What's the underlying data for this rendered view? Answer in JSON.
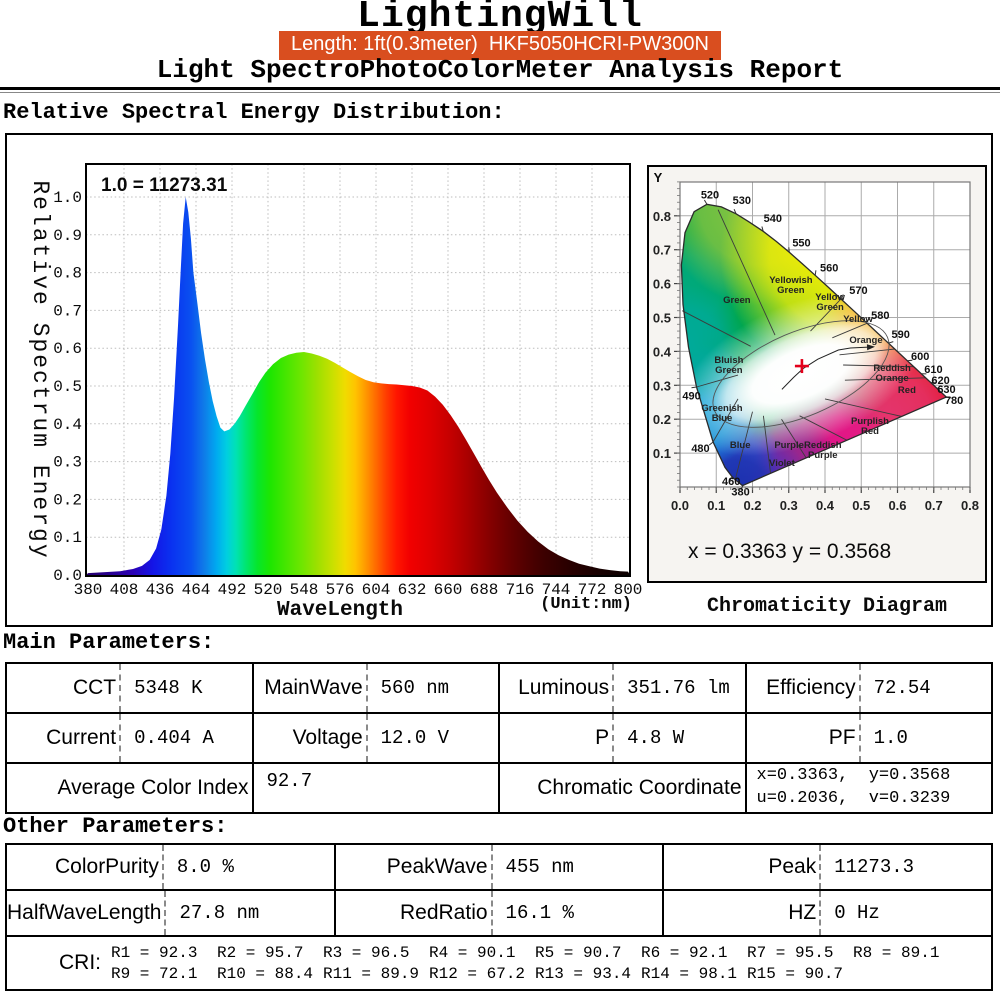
{
  "header": {
    "brand": "LightingWill",
    "badge": "Length: 1ft(0.3meter)  HKF5050HCRI-PW300N",
    "subtitle": "Light SpectroPhotoColorMeter Analysis Report"
  },
  "sections": {
    "spectral": "Relative Spectral Energy Distribution:",
    "main": "Main Parameters:",
    "other": "Other Parameters:"
  },
  "chart_data": [
    {
      "type": "area",
      "title_annotation": "1.0 = 11273.31",
      "xlabel": "WaveLength",
      "x_unit_label": "(Unit:nm)",
      "ylabel": "Relative Spectrum Energy",
      "x_range": [
        380,
        800
      ],
      "y_range": [
        0.0,
        1.0
      ],
      "x_ticks": [
        380,
        408,
        436,
        464,
        492,
        520,
        548,
        576,
        604,
        632,
        660,
        688,
        716,
        744,
        772,
        800
      ],
      "y_tick_step": 0.1,
      "grid": true,
      "peak_normalization": 11273.31,
      "points": [
        [
          380,
          0.005
        ],
        [
          395,
          0.008
        ],
        [
          405,
          0.01
        ],
        [
          415,
          0.016
        ],
        [
          422,
          0.024
        ],
        [
          428,
          0.04
        ],
        [
          433,
          0.07
        ],
        [
          437,
          0.12
        ],
        [
          441,
          0.21
        ],
        [
          444,
          0.32
        ],
        [
          447,
          0.47
        ],
        [
          450,
          0.66
        ],
        [
          452,
          0.8
        ],
        [
          454,
          0.93
        ],
        [
          456,
          1.0
        ],
        [
          458,
          0.96
        ],
        [
          460,
          0.89
        ],
        [
          462,
          0.8
        ],
        [
          465,
          0.72
        ],
        [
          468,
          0.64
        ],
        [
          471,
          0.57
        ],
        [
          474,
          0.51
        ],
        [
          477,
          0.46
        ],
        [
          480,
          0.42
        ],
        [
          483,
          0.39
        ],
        [
          486,
          0.38
        ],
        [
          490,
          0.385
        ],
        [
          494,
          0.4
        ],
        [
          498,
          0.42
        ],
        [
          503,
          0.45
        ],
        [
          508,
          0.48
        ],
        [
          513,
          0.51
        ],
        [
          518,
          0.535
        ],
        [
          524,
          0.558
        ],
        [
          530,
          0.574
        ],
        [
          536,
          0.583
        ],
        [
          542,
          0.588
        ],
        [
          548,
          0.59
        ],
        [
          554,
          0.586
        ],
        [
          560,
          0.58
        ],
        [
          566,
          0.572
        ],
        [
          572,
          0.561
        ],
        [
          578,
          0.549
        ],
        [
          584,
          0.537
        ],
        [
          590,
          0.526
        ],
        [
          596,
          0.516
        ],
        [
          602,
          0.51
        ],
        [
          608,
          0.507
        ],
        [
          614,
          0.505
        ],
        [
          620,
          0.504
        ],
        [
          626,
          0.502
        ],
        [
          632,
          0.5
        ],
        [
          638,
          0.496
        ],
        [
          644,
          0.488
        ],
        [
          650,
          0.472
        ],
        [
          656,
          0.45
        ],
        [
          662,
          0.423
        ],
        [
          668,
          0.392
        ],
        [
          674,
          0.358
        ],
        [
          680,
          0.322
        ],
        [
          686,
          0.286
        ],
        [
          692,
          0.251
        ],
        [
          698,
          0.218
        ],
        [
          706,
          0.179
        ],
        [
          714,
          0.144
        ],
        [
          722,
          0.114
        ],
        [
          730,
          0.089
        ],
        [
          738,
          0.068
        ],
        [
          746,
          0.052
        ],
        [
          754,
          0.04
        ],
        [
          762,
          0.03
        ],
        [
          770,
          0.023
        ],
        [
          778,
          0.017
        ],
        [
          786,
          0.013
        ],
        [
          794,
          0.01
        ],
        [
          800,
          0.009
        ]
      ],
      "wavelength_colors": [
        [
          380,
          "#26006e"
        ],
        [
          415,
          "#2b00b4"
        ],
        [
          430,
          "#1414e6"
        ],
        [
          445,
          "#0a32f0"
        ],
        [
          460,
          "#0a50f0"
        ],
        [
          470,
          "#0f7ae8"
        ],
        [
          480,
          "#00aaf0"
        ],
        [
          488,
          "#00cfe0"
        ],
        [
          495,
          "#00e2b4"
        ],
        [
          503,
          "#00e66e"
        ],
        [
          512,
          "#06e62a"
        ],
        [
          522,
          "#1ee600"
        ],
        [
          534,
          "#46e600"
        ],
        [
          546,
          "#6ee600"
        ],
        [
          558,
          "#9ce000"
        ],
        [
          570,
          "#c8e000"
        ],
        [
          580,
          "#f0dc00"
        ],
        [
          588,
          "#ffc300"
        ],
        [
          596,
          "#ff9800"
        ],
        [
          604,
          "#ff6a00"
        ],
        [
          612,
          "#ff3c00"
        ],
        [
          620,
          "#ff1600"
        ],
        [
          630,
          "#f20000"
        ],
        [
          645,
          "#e00000"
        ],
        [
          660,
          "#c80000"
        ],
        [
          675,
          "#aa0000"
        ],
        [
          690,
          "#8a0000"
        ],
        [
          705,
          "#6c0000"
        ],
        [
          720,
          "#520000"
        ],
        [
          735,
          "#3c0000"
        ],
        [
          755,
          "#280000"
        ],
        [
          775,
          "#190000"
        ],
        [
          800,
          "#0c0000"
        ]
      ]
    },
    {
      "type": "scatter",
      "name": "CIE 1931 Chromaticity Diagram",
      "caption": "Chromaticity Diagram",
      "y_axis_label": "Y",
      "x_ticks": [
        0.0,
        0.1,
        0.2,
        0.3,
        0.4,
        0.5,
        0.6,
        0.7,
        0.8
      ],
      "y_ticks": [
        0.1,
        0.2,
        0.3,
        0.4,
        0.5,
        0.6,
        0.7,
        0.8
      ],
      "point": {
        "x": 0.3363,
        "y": 0.3568
      },
      "coordinate_text": "x = 0.3363   y = 0.3568",
      "locus": [
        [
          380,
          0.1741,
          0.005
        ],
        [
          420,
          0.1714,
          0.0051
        ],
        [
          440,
          0.1644,
          0.0109
        ],
        [
          455,
          0.151,
          0.0227
        ],
        [
          460,
          0.144,
          0.0297
        ],
        [
          470,
          0.1241,
          0.0578
        ],
        [
          480,
          0.0913,
          0.1327
        ],
        [
          490,
          0.0454,
          0.295
        ],
        [
          495,
          0.0235,
          0.4127
        ],
        [
          500,
          0.0082,
          0.5384
        ],
        [
          505,
          0.0039,
          0.6548
        ],
        [
          510,
          0.0139,
          0.7502
        ],
        [
          515,
          0.0389,
          0.812
        ],
        [
          520,
          0.0743,
          0.8338
        ],
        [
          525,
          0.1142,
          0.8262
        ],
        [
          530,
          0.1547,
          0.8059
        ],
        [
          535,
          0.1896,
          0.7826
        ],
        [
          540,
          0.2296,
          0.7543
        ],
        [
          545,
          0.2658,
          0.7243
        ],
        [
          550,
          0.3016,
          0.6923
        ],
        [
          555,
          0.3373,
          0.6588
        ],
        [
          560,
          0.3731,
          0.6245
        ],
        [
          565,
          0.4087,
          0.5896
        ],
        [
          570,
          0.4441,
          0.5547
        ],
        [
          575,
          0.4788,
          0.5202
        ],
        [
          580,
          0.5125,
          0.4866
        ],
        [
          585,
          0.5448,
          0.4544
        ],
        [
          590,
          0.5752,
          0.4242
        ],
        [
          595,
          0.6029,
          0.3965
        ],
        [
          600,
          0.627,
          0.3725
        ],
        [
          605,
          0.6482,
          0.3514
        ],
        [
          610,
          0.6658,
          0.334
        ],
        [
          615,
          0.6801,
          0.3197
        ],
        [
          620,
          0.6915,
          0.3083
        ],
        [
          625,
          0.7006,
          0.2993
        ],
        [
          630,
          0.7079,
          0.292
        ],
        [
          640,
          0.719,
          0.2809
        ],
        [
          650,
          0.726,
          0.274
        ],
        [
          780,
          0.7347,
          0.2653
        ]
      ],
      "labeled_wavelengths": [
        520,
        530,
        540,
        550,
        560,
        570,
        580,
        590,
        600,
        610,
        620,
        630,
        780,
        490,
        480,
        460,
        380
      ],
      "region_labels": [
        {
          "lines": [
            "Green"
          ],
          "x": 0.157,
          "y": 0.543
        },
        {
          "lines": [
            "Yellowish",
            "Green"
          ],
          "x": 0.306,
          "y": 0.602
        },
        {
          "lines": [
            "Yellow",
            "Green"
          ],
          "x": 0.414,
          "y": 0.552
        },
        {
          "lines": [
            "Yellow"
          ],
          "x": 0.491,
          "y": 0.487
        },
        {
          "lines": [
            "Orange"
          ],
          "x": 0.513,
          "y": 0.425
        },
        {
          "lines": [
            "Reddish",
            "Orange"
          ],
          "x": 0.585,
          "y": 0.342
        },
        {
          "lines": [
            "Red"
          ],
          "x": 0.626,
          "y": 0.277
        },
        {
          "lines": [
            "Purplish",
            "Red"
          ],
          "x": 0.524,
          "y": 0.186
        },
        {
          "lines": [
            "Reddish",
            "Purple"
          ],
          "x": 0.394,
          "y": 0.115
        },
        {
          "lines": [
            "Purple"
          ],
          "x": 0.301,
          "y": 0.115
        },
        {
          "lines": [
            "Violet"
          ],
          "x": 0.281,
          "y": 0.062
        },
        {
          "lines": [
            "Blue"
          ],
          "x": 0.166,
          "y": 0.115
        },
        {
          "lines": [
            "Greenish",
            "Blue"
          ],
          "x": 0.116,
          "y": 0.224
        },
        {
          "lines": [
            "Bluish",
            "Green"
          ],
          "x": 0.135,
          "y": 0.366
        }
      ],
      "boundaries": [
        [
          0.262,
          0.448,
          0.105,
          0.818
        ],
        [
          0.195,
          0.415,
          0.006,
          0.52
        ],
        [
          0.16,
          0.33,
          0.0454,
          0.295
        ],
        [
          0.16,
          0.26,
          0.0913,
          0.133
        ],
        [
          0.2,
          0.222,
          0.152,
          0.02
        ],
        [
          0.23,
          0.21,
          0.25,
          0.04
        ],
        [
          0.28,
          0.2,
          0.348,
          0.086
        ],
        [
          0.33,
          0.21,
          0.46,
          0.138
        ],
        [
          0.4,
          0.26,
          0.612,
          0.208
        ],
        [
          0.455,
          0.315,
          0.678,
          0.322
        ],
        [
          0.45,
          0.36,
          0.644,
          0.355
        ],
        [
          0.44,
          0.39,
          0.593,
          0.407
        ],
        [
          0.42,
          0.44,
          0.516,
          0.483
        ],
        [
          0.36,
          0.46,
          0.444,
          0.555
        ]
      ],
      "planckian_locus": [
        [
          0.527,
          0.413
        ],
        [
          0.47,
          0.41
        ],
        [
          0.437,
          0.404
        ],
        [
          0.38,
          0.377
        ],
        [
          0.34,
          0.35
        ],
        [
          0.313,
          0.323
        ],
        [
          0.281,
          0.288
        ]
      ]
    }
  ],
  "tables": {
    "main": {
      "rows": [
        [
          {
            "label": "CCT",
            "value": "5348 K"
          },
          {
            "label": "MainWave",
            "value": "560 nm"
          },
          {
            "label": "Luminous",
            "value": "351.76 lm"
          },
          {
            "label": "Efficiency",
            "value": "72.54"
          }
        ],
        [
          {
            "label": "Current",
            "value": "0.404 A"
          },
          {
            "label": "Voltage",
            "value": "12.0 V"
          },
          {
            "label": "P",
            "value": "4.8 W"
          },
          {
            "label": "PF",
            "value": "1.0"
          }
        ]
      ],
      "row3": {
        "label1": "Average Color Index",
        "value1": "92.7",
        "label2": "Chromatic Coordinate",
        "value2_line1": "x=0.3363,  y=0.3568",
        "value2_line2": "u=0.2036,  v=0.3239"
      }
    },
    "other": {
      "rows": [
        [
          {
            "label": "ColorPurity",
            "value": "8.0 %"
          },
          {
            "label": "PeakWave",
            "value": "455 nm"
          },
          {
            "label": "Peak",
            "value": "11273.3"
          }
        ],
        [
          {
            "label": "HalfWaveLength",
            "value": "27.8 nm"
          },
          {
            "label": "RedRatio",
            "value": "16.1 %"
          },
          {
            "label": "HZ",
            "value": "0 Hz"
          }
        ]
      ]
    },
    "cri": {
      "label": "CRI:",
      "line1": [
        "R1 = 92.3",
        "R2 = 95.7",
        "R3 = 96.5",
        "R4 = 90.1",
        "R5 = 90.7",
        "R6 = 92.1",
        "R7 = 95.5",
        "R8 = 89.1"
      ],
      "line2": [
        "R9 = 72.1",
        "R10 = 88.4",
        "R11 = 89.9",
        "R12 = 67.2",
        "R13 = 93.4",
        "R14 = 98.1",
        "R15 = 90.7"
      ]
    }
  }
}
